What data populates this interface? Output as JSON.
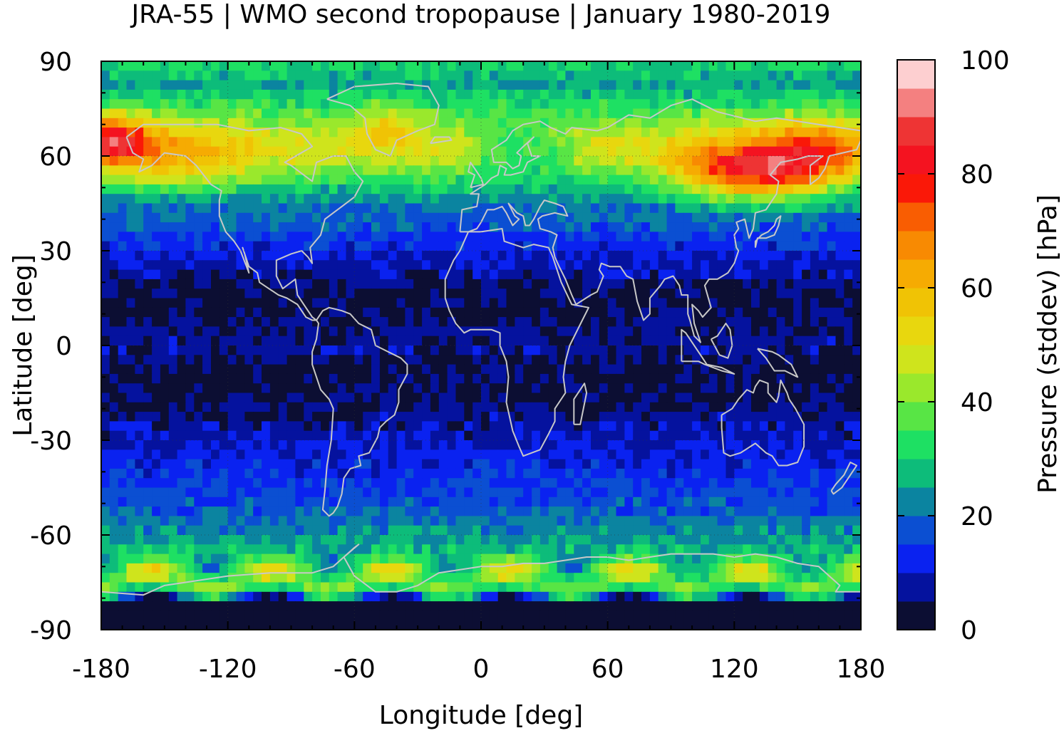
{
  "chart_data": {
    "type": "heatmap",
    "title": "JRA-55 | WMO second tropopause | January 1980-2019",
    "xlabel": "Longitude [deg]",
    "ylabel": "Latitude [deg]",
    "colorbar_label": "Pressure (stddev) [hPa]",
    "xlim": [
      -180,
      180
    ],
    "ylim": [
      -90,
      90
    ],
    "xticks": [
      -180,
      -120,
      -60,
      0,
      60,
      120,
      180
    ],
    "xtick_labels": [
      "-180",
      "-120",
      "-60",
      "0",
      "60",
      "120",
      "180"
    ],
    "yticks": [
      90,
      60,
      30,
      0,
      -30,
      -60,
      -90
    ],
    "ytick_labels": [
      "90",
      "60",
      "30",
      "0",
      "-30",
      "-60",
      "-90"
    ],
    "colorbar": {
      "range": [
        0,
        100
      ],
      "ticks": [
        0,
        20,
        40,
        60,
        80,
        100
      ],
      "tick_labels": [
        "0",
        "20",
        "40",
        "60",
        "80",
        "100"
      ],
      "levels": [
        {
          "from": 0,
          "to": 5,
          "color": "#0c0e33"
        },
        {
          "from": 5,
          "to": 10,
          "color": "#05129e"
        },
        {
          "from": 10,
          "to": 15,
          "color": "#0a22f0"
        },
        {
          "from": 15,
          "to": 20,
          "color": "#0b4fd2"
        },
        {
          "from": 20,
          "to": 25,
          "color": "#0b84a0"
        },
        {
          "from": 25,
          "to": 30,
          "color": "#0dbc7a"
        },
        {
          "from": 30,
          "to": 35,
          "color": "#1ee063"
        },
        {
          "from": 35,
          "to": 40,
          "color": "#58e545"
        },
        {
          "from": 40,
          "to": 45,
          "color": "#9ae82c"
        },
        {
          "from": 45,
          "to": 50,
          "color": "#cfe41c"
        },
        {
          "from": 50,
          "to": 55,
          "color": "#e8d70e"
        },
        {
          "from": 55,
          "to": 60,
          "color": "#f0c305"
        },
        {
          "from": 60,
          "to": 65,
          "color": "#f6ab02"
        },
        {
          "from": 65,
          "to": 70,
          "color": "#f88a02"
        },
        {
          "from": 70,
          "to": 75,
          "color": "#f95d02"
        },
        {
          "from": 75,
          "to": 80,
          "color": "#fa1808"
        },
        {
          "from": 80,
          "to": 85,
          "color": "#f41320"
        },
        {
          "from": 85,
          "to": 90,
          "color": "#ee3434"
        },
        {
          "from": 90,
          "to": 95,
          "color": "#f48080"
        },
        {
          "from": 95,
          "to": 100,
          "color": "#fdcfd0"
        }
      ]
    },
    "zonal_profile": {
      "description_lat": [
        -90,
        -82,
        -77,
        -72,
        -67,
        -62,
        -57,
        -52,
        -47,
        -42,
        -37,
        -32,
        -27,
        -22,
        -17,
        -12,
        -7,
        -2,
        3,
        8,
        13,
        18,
        23,
        28,
        33,
        38,
        43,
        48,
        53,
        58,
        63,
        68,
        73,
        78,
        83,
        88
      ],
      "typical_value": [
        2,
        3,
        35,
        40,
        30,
        25,
        22,
        18,
        16,
        14,
        12,
        10,
        8,
        6,
        4,
        3,
        4,
        7,
        6,
        4,
        3,
        4,
        8,
        10,
        14,
        18,
        20,
        25,
        35,
        45,
        50,
        45,
        38,
        30,
        25,
        30
      ]
    },
    "map_overlay": "coastlines (gray)",
    "grid": true,
    "grid_style": "dotted"
  },
  "colors": {
    "coastline": "#c8c8c8",
    "frame": "#000000",
    "grid": "#333333"
  }
}
